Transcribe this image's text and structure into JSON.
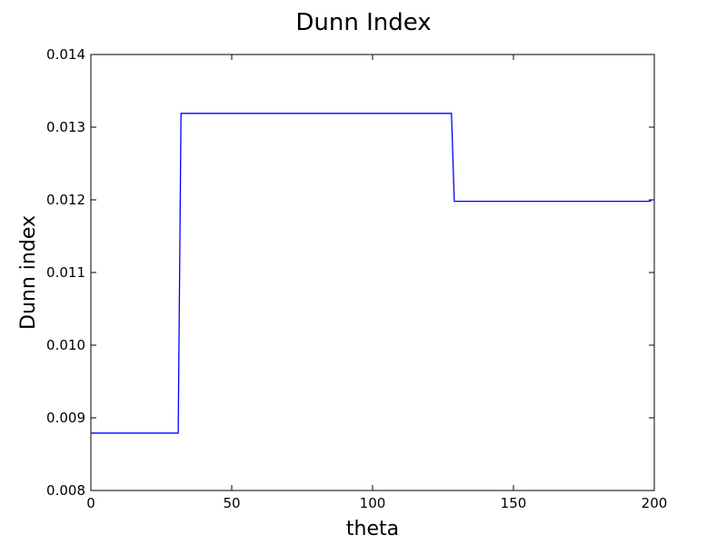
{
  "chart_data": {
    "type": "line",
    "title": "Dunn Index",
    "xlabel": "theta",
    "ylabel": "Dunn index",
    "xlim": [
      0,
      200
    ],
    "ylim": [
      0.008,
      0.014
    ],
    "xticks": [
      "0",
      "50",
      "100",
      "150",
      "200"
    ],
    "yticks": [
      "0.008",
      "0.009",
      "0.010",
      "0.011",
      "0.012",
      "0.013",
      "0.014"
    ],
    "grid": false,
    "series": [
      {
        "color": "#0000ff",
        "x": [
          0,
          31,
          32,
          128,
          129,
          198,
          199
        ],
        "y": [
          0.00879,
          0.00879,
          0.01319,
          0.01319,
          0.01198,
          0.01198,
          0.01199
        ]
      }
    ]
  }
}
